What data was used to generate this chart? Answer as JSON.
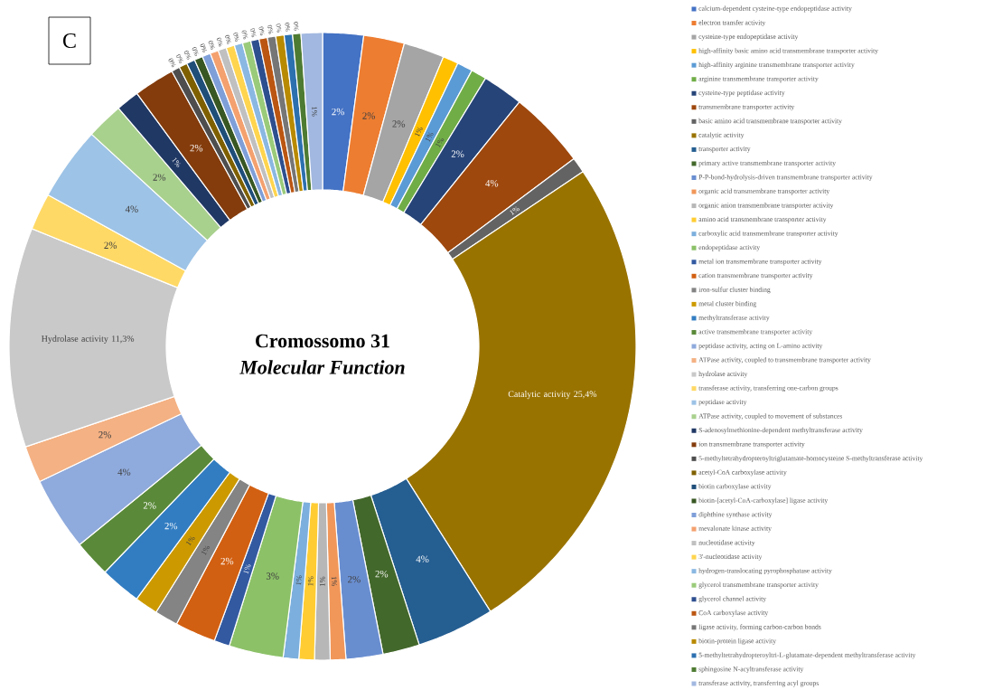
{
  "chart_data": {
    "type": "donut",
    "title": "Cromossomo 31",
    "subtitle": "Molecular Function",
    "annotations": [
      "C"
    ],
    "legend": "right",
    "categories": [
      "calcium-dependent cysteine-type endopeptidase activity",
      "electron transfer activity",
      "cysteine-type endopeptidase activity",
      "high-affinity basic amino acid transmembrane transporter activity",
      "high-affinity arginine transmembrane transporter activity",
      "arginine transmembrane transporter activity",
      "cysteine-type peptidase activity",
      "transmembrane transporter activity",
      "basic amino acid transmembrane transporter activity",
      "catalytic activity",
      "transporter activity",
      "primary active transmembrane transporter activity",
      "P-P-bond-hydrolysis-driven transmembrane transporter activity",
      "organic acid transmembrane transporter activity",
      "organic anion transmembrane transporter activity",
      "amino acid transmembrane transporter activity",
      "carboxylic acid transmembrane transporter activity",
      "endopeptidase activity",
      "metal ion transmembrane transporter activity",
      "cation transmembrane transporter activity",
      "iron-sulfur cluster binding",
      "metal cluster binding",
      "methyltransferase activity",
      "active transmembrane transporter activity",
      "peptidase activity, acting on L-amino activity",
      "ATPase activity, coupled to transmembrane transporter activity",
      "hydrolase activity",
      "transferase activity, transferring one-carbon groups",
      "peptidase activity",
      "ATPase activity, coupled to movement of substances",
      "S-adenosylmethionine-dependent methyltransferase activity",
      "ion transmembrane transporter activity",
      "5-methyltetrahydropteroyltriglutamate-homocysteine S-methyltransferase activity",
      "acetyl-CoA carboxylase activity",
      "biotin carboxylase activity",
      "biotin-[acetyl-CoA-carboxylase] ligase activity",
      "diphthine synthase activity",
      "mevalonate kinase activity",
      "nucleotidase activity",
      "3'-nucleotidase activity",
      "hydrogen-translocating pyrophosphatase activity",
      "glycerol transmembrane transporter activity",
      "glycerol channel activity",
      "CoA carboxylase activity",
      "ligase activity, forming carbon-carbon bonds",
      "biotin-protein ligase activity",
      "5-methyltetrahydropteroyltri-L-glutamate-dependent methyltransferase activity",
      "sphingosine N-acyltransferase activity",
      "transferase activity, transferring acyl groups"
    ],
    "values": [
      2.1,
      2.1,
      2.1,
      0.8,
      0.8,
      0.8,
      2.1,
      4.0,
      0.8,
      25.4,
      4.0,
      1.9,
      1.9,
      0.8,
      0.8,
      0.8,
      0.8,
      2.8,
      0.8,
      2.1,
      1.2,
      1.2,
      2.1,
      1.9,
      3.8,
      1.9,
      11.3,
      1.9,
      3.8,
      1.9,
      1.2,
      2.1,
      0.43,
      0.43,
      0.43,
      0.43,
      0.43,
      0.43,
      0.43,
      0.43,
      0.43,
      0.43,
      0.43,
      0.43,
      0.43,
      0.43,
      0.43,
      0.43,
      1.1
    ],
    "value_labels": [
      "2%",
      "2%",
      "2%",
      "1%",
      "1%",
      "1%",
      "2%",
      "4%",
      "1%",
      "Catalytic activity 25,4%",
      "4%",
      "2%",
      "2%",
      "1%",
      "1%",
      "1%",
      "1%",
      "3%",
      "1%",
      "2%",
      "1%",
      "1%",
      "2%",
      "2%",
      "4%",
      "2%",
      "Hydrolase activity 11,3%",
      "2%",
      "4%",
      "2%",
      "1%",
      "2%",
      "0%",
      "0%",
      "0%",
      "0%",
      "0%",
      "0%",
      "0%",
      "0%",
      "0%",
      "0%",
      "0%",
      "0%",
      "0%",
      "0%",
      "0%",
      "0%",
      "1%"
    ],
    "colors": [
      "#4472c4",
      "#ed7d31",
      "#a5a5a5",
      "#ffc000",
      "#5b9bd5",
      "#70ad47",
      "#264478",
      "#9e480e",
      "#636363",
      "#997300",
      "#255e91",
      "#43682b",
      "#698ed0",
      "#f1975a",
      "#b7b7b7",
      "#ffcd33",
      "#7cafdd",
      "#8cc168",
      "#335aa1",
      "#d26012",
      "#848484",
      "#cc9a00",
      "#327dc2",
      "#5a8a39",
      "#8faadc",
      "#f4b183",
      "#c9c9c9",
      "#ffd966",
      "#9dc3e6",
      "#a9d18e",
      "#203864",
      "#843c0c",
      "#4e4e4e",
      "#7f6000",
      "#1f4e79",
      "#385723",
      "#7f9fd9",
      "#f4a16f",
      "#c0c0c0",
      "#ffd54f",
      "#8ab8e2",
      "#9acb7a",
      "#2e4f8f",
      "#bb5612",
      "#767676",
      "#b88a00",
      "#2c70af",
      "#4e7b32",
      "#a2b8e0"
    ]
  }
}
